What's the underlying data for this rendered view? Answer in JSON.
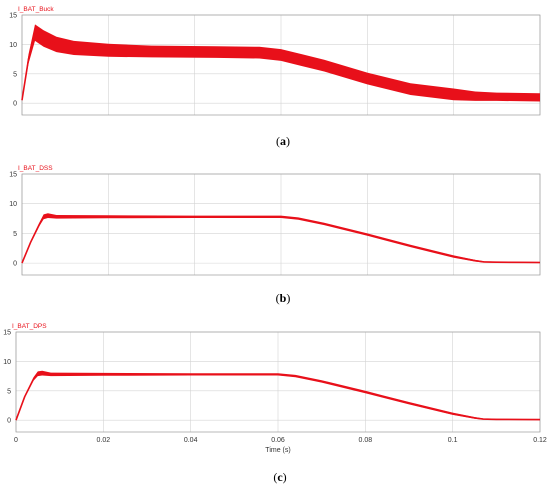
{
  "theme": {
    "trace_color": "#e8101a",
    "label_color": "#e8101a",
    "grid_color": "#d4d4d4",
    "axis_color": "#9a9a9a"
  },
  "chart_data": [
    {
      "type": "line",
      "signal": "I_BAT_Buck",
      "caption": "a",
      "xlim": [
        0,
        0.12
      ],
      "ylim": [
        -2,
        15
      ],
      "yticks": [
        "0",
        "5",
        "10",
        "15"
      ],
      "grid": true,
      "x": [
        0,
        0.0015,
        0.003,
        0.005,
        0.008,
        0.012,
        0.02,
        0.03,
        0.045,
        0.055,
        0.06,
        0.065,
        0.07,
        0.08,
        0.09,
        0.1,
        0.105,
        0.11,
        0.12
      ],
      "y": [
        0.5,
        7.5,
        12.0,
        11.0,
        10.0,
        9.4,
        9.0,
        8.8,
        8.7,
        8.6,
        8.2,
        7.3,
        6.4,
        4.2,
        2.4,
        1.5,
        1.2,
        1.1,
        1.0
      ],
      "ripple": [
        0,
        0.8,
        1.4,
        1.4,
        1.3,
        1.2,
        1.1,
        1.0,
        1.0,
        1.0,
        1.0,
        1.0,
        1.0,
        1.0,
        1.0,
        1.0,
        0.8,
        0.7,
        0.7
      ]
    },
    {
      "type": "line",
      "signal": "I_BAT_DSS",
      "caption": "b",
      "xlim": [
        0,
        0.12
      ],
      "ylim": [
        -2,
        15
      ],
      "yticks": [
        "0",
        "5",
        "10",
        "15"
      ],
      "grid": true,
      "x": [
        0,
        0.002,
        0.004,
        0.005,
        0.006,
        0.008,
        0.02,
        0.04,
        0.06,
        0.064,
        0.07,
        0.08,
        0.09,
        0.1,
        0.105,
        0.107,
        0.11,
        0.12
      ],
      "y": [
        0,
        3.5,
        6.5,
        7.8,
        8.0,
        7.8,
        7.8,
        7.8,
        7.8,
        7.5,
        6.6,
        4.8,
        2.9,
        1.1,
        0.4,
        0.2,
        0.15,
        0.1
      ],
      "ripple": [
        0,
        0.2,
        0.3,
        0.4,
        0.4,
        0.3,
        0.25,
        0.2,
        0.2,
        0.2,
        0.2,
        0.2,
        0.2,
        0.2,
        0.15,
        0.1,
        0.1,
        0.1
      ]
    },
    {
      "type": "line",
      "signal": "I_BAT_DPS",
      "caption": "c",
      "xlabel": "Time (s)",
      "xlim": [
        0,
        0.12
      ],
      "ylim": [
        -2,
        15
      ],
      "xticks": [
        0,
        0.02,
        0.04,
        0.06,
        0.08,
        0.1,
        0.12
      ],
      "xtick_labels": [
        "0",
        "0.02",
        "0.04",
        "0.06",
        "0.08",
        "0.1",
        "0.12"
      ],
      "yticks": [
        "0",
        "5",
        "10",
        "15"
      ],
      "grid": true,
      "x": [
        0,
        0.002,
        0.004,
        0.005,
        0.006,
        0.008,
        0.02,
        0.04,
        0.06,
        0.064,
        0.07,
        0.08,
        0.09,
        0.1,
        0.105,
        0.107,
        0.11,
        0.12
      ],
      "y": [
        0,
        4.0,
        7.0,
        7.9,
        8.0,
        7.8,
        7.8,
        7.8,
        7.8,
        7.5,
        6.6,
        4.8,
        2.9,
        1.1,
        0.4,
        0.2,
        0.15,
        0.1
      ],
      "ripple": [
        0,
        0.2,
        0.3,
        0.4,
        0.4,
        0.3,
        0.25,
        0.2,
        0.2,
        0.2,
        0.2,
        0.2,
        0.2,
        0.2,
        0.15,
        0.1,
        0.1,
        0.1
      ]
    }
  ]
}
